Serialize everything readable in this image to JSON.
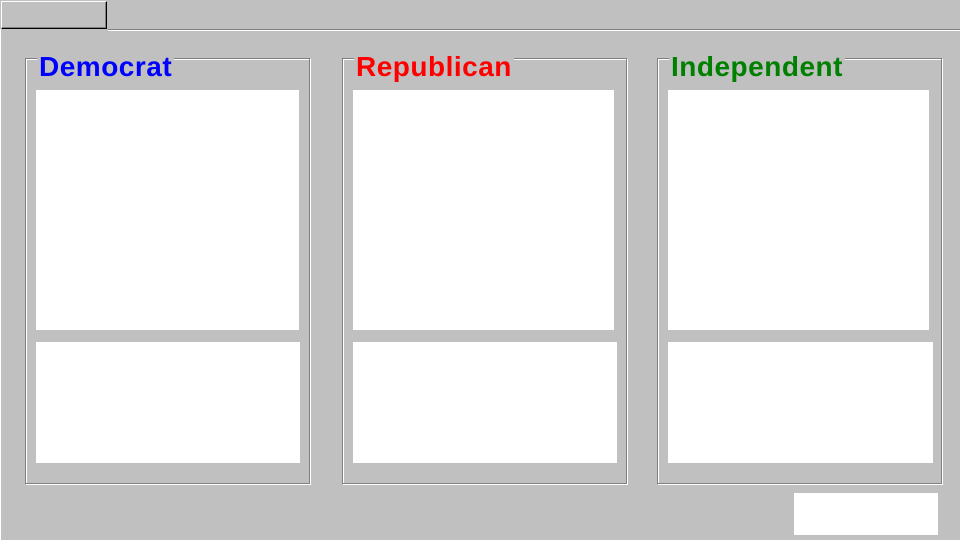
{
  "toolbar": {
    "tab_label": ""
  },
  "groups": {
    "democrat": {
      "title": "Democrat",
      "color": "#0000ff",
      "notes": ""
    },
    "republican": {
      "title": "Republican",
      "color": "#ff0000",
      "notes": ""
    },
    "independent": {
      "title": "Independent",
      "color": "#008000",
      "notes": ""
    }
  },
  "footer": {
    "field_value": ""
  }
}
